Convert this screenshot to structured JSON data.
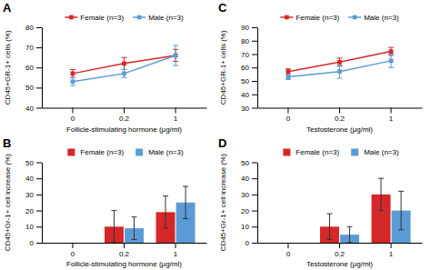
{
  "chart_data": [
    {
      "type": "line",
      "title": "A",
      "x_label": "Follicle-stimulating hormone (μg/ml)",
      "y_label": "CD45+GR-1+ cells (%)",
      "categories": [
        "0",
        "0.2",
        "1"
      ],
      "series": [
        {
          "name": "Female (n=3)",
          "color": "#d62728",
          "marker": "square",
          "values": [
            57,
            62,
            66
          ],
          "errors": [
            2,
            3,
            3
          ]
        },
        {
          "name": "Male (n=3)",
          "color": "#5b9bd5",
          "marker": "square",
          "values": [
            53,
            57,
            66
          ],
          "errors": [
            2,
            2,
            5
          ]
        }
      ],
      "ylim": [
        40,
        80
      ],
      "yticks": [
        40,
        50,
        60,
        70,
        80
      ],
      "grid": false,
      "legend": "top"
    },
    {
      "type": "bar",
      "title": "B",
      "x_label": "Follicle-stimulating hormone (μg/ml)",
      "y_label": "CD45+Gr-1+ cell increase (%)",
      "categories": [
        "0",
        "0.2",
        "1"
      ],
      "series": [
        {
          "name": "Female (n=3)",
          "color": "#d62728",
          "values": [
            null,
            10,
            19
          ],
          "errors": [
            null,
            10,
            10
          ]
        },
        {
          "name": "Male (n=3)",
          "color": "#5b9bd5",
          "values": [
            null,
            9,
            25
          ],
          "errors": [
            null,
            7,
            10
          ]
        }
      ],
      "ylim": [
        0,
        50
      ],
      "yticks": [
        0,
        10,
        20,
        30,
        40,
        50
      ],
      "grid": false,
      "legend": "top"
    },
    {
      "type": "line",
      "title": "C",
      "x_label": "Testosterone (μg/ml)",
      "y_label": "CD45+GR-1+ cells (%)",
      "categories": [
        "0",
        "0.2",
        "1"
      ],
      "series": [
        {
          "name": "Female (n=3)",
          "color": "#d62728",
          "marker": "square",
          "values": [
            57,
            64,
            72
          ],
          "errors": [
            2,
            3,
            3
          ]
        },
        {
          "name": "Male (n=3)",
          "color": "#5b9bd5",
          "marker": "square",
          "values": [
            53,
            57,
            65
          ],
          "errors": [
            2,
            5,
            5
          ]
        }
      ],
      "ylim": [
        30,
        90
      ],
      "yticks": [
        30,
        40,
        50,
        60,
        70,
        80,
        90
      ],
      "grid": false,
      "legend": "top"
    },
    {
      "type": "bar",
      "title": "D",
      "x_label": "Testosterone (μg/ml)",
      "y_label": "CD45+Gr-1+ cell increase (%)",
      "categories": [
        "0",
        "0.2",
        "1"
      ],
      "series": [
        {
          "name": "Female (n=3)",
          "color": "#d62728",
          "values": [
            null,
            10,
            30
          ],
          "errors": [
            null,
            8,
            10
          ]
        },
        {
          "name": "Male (n=3)",
          "color": "#5b9bd5",
          "values": [
            null,
            5,
            20
          ],
          "errors": [
            null,
            5,
            12
          ]
        }
      ],
      "ylim": [
        0,
        50
      ],
      "yticks": [
        0,
        10,
        20,
        30,
        40,
        50
      ],
      "grid": false,
      "legend": "top"
    }
  ]
}
